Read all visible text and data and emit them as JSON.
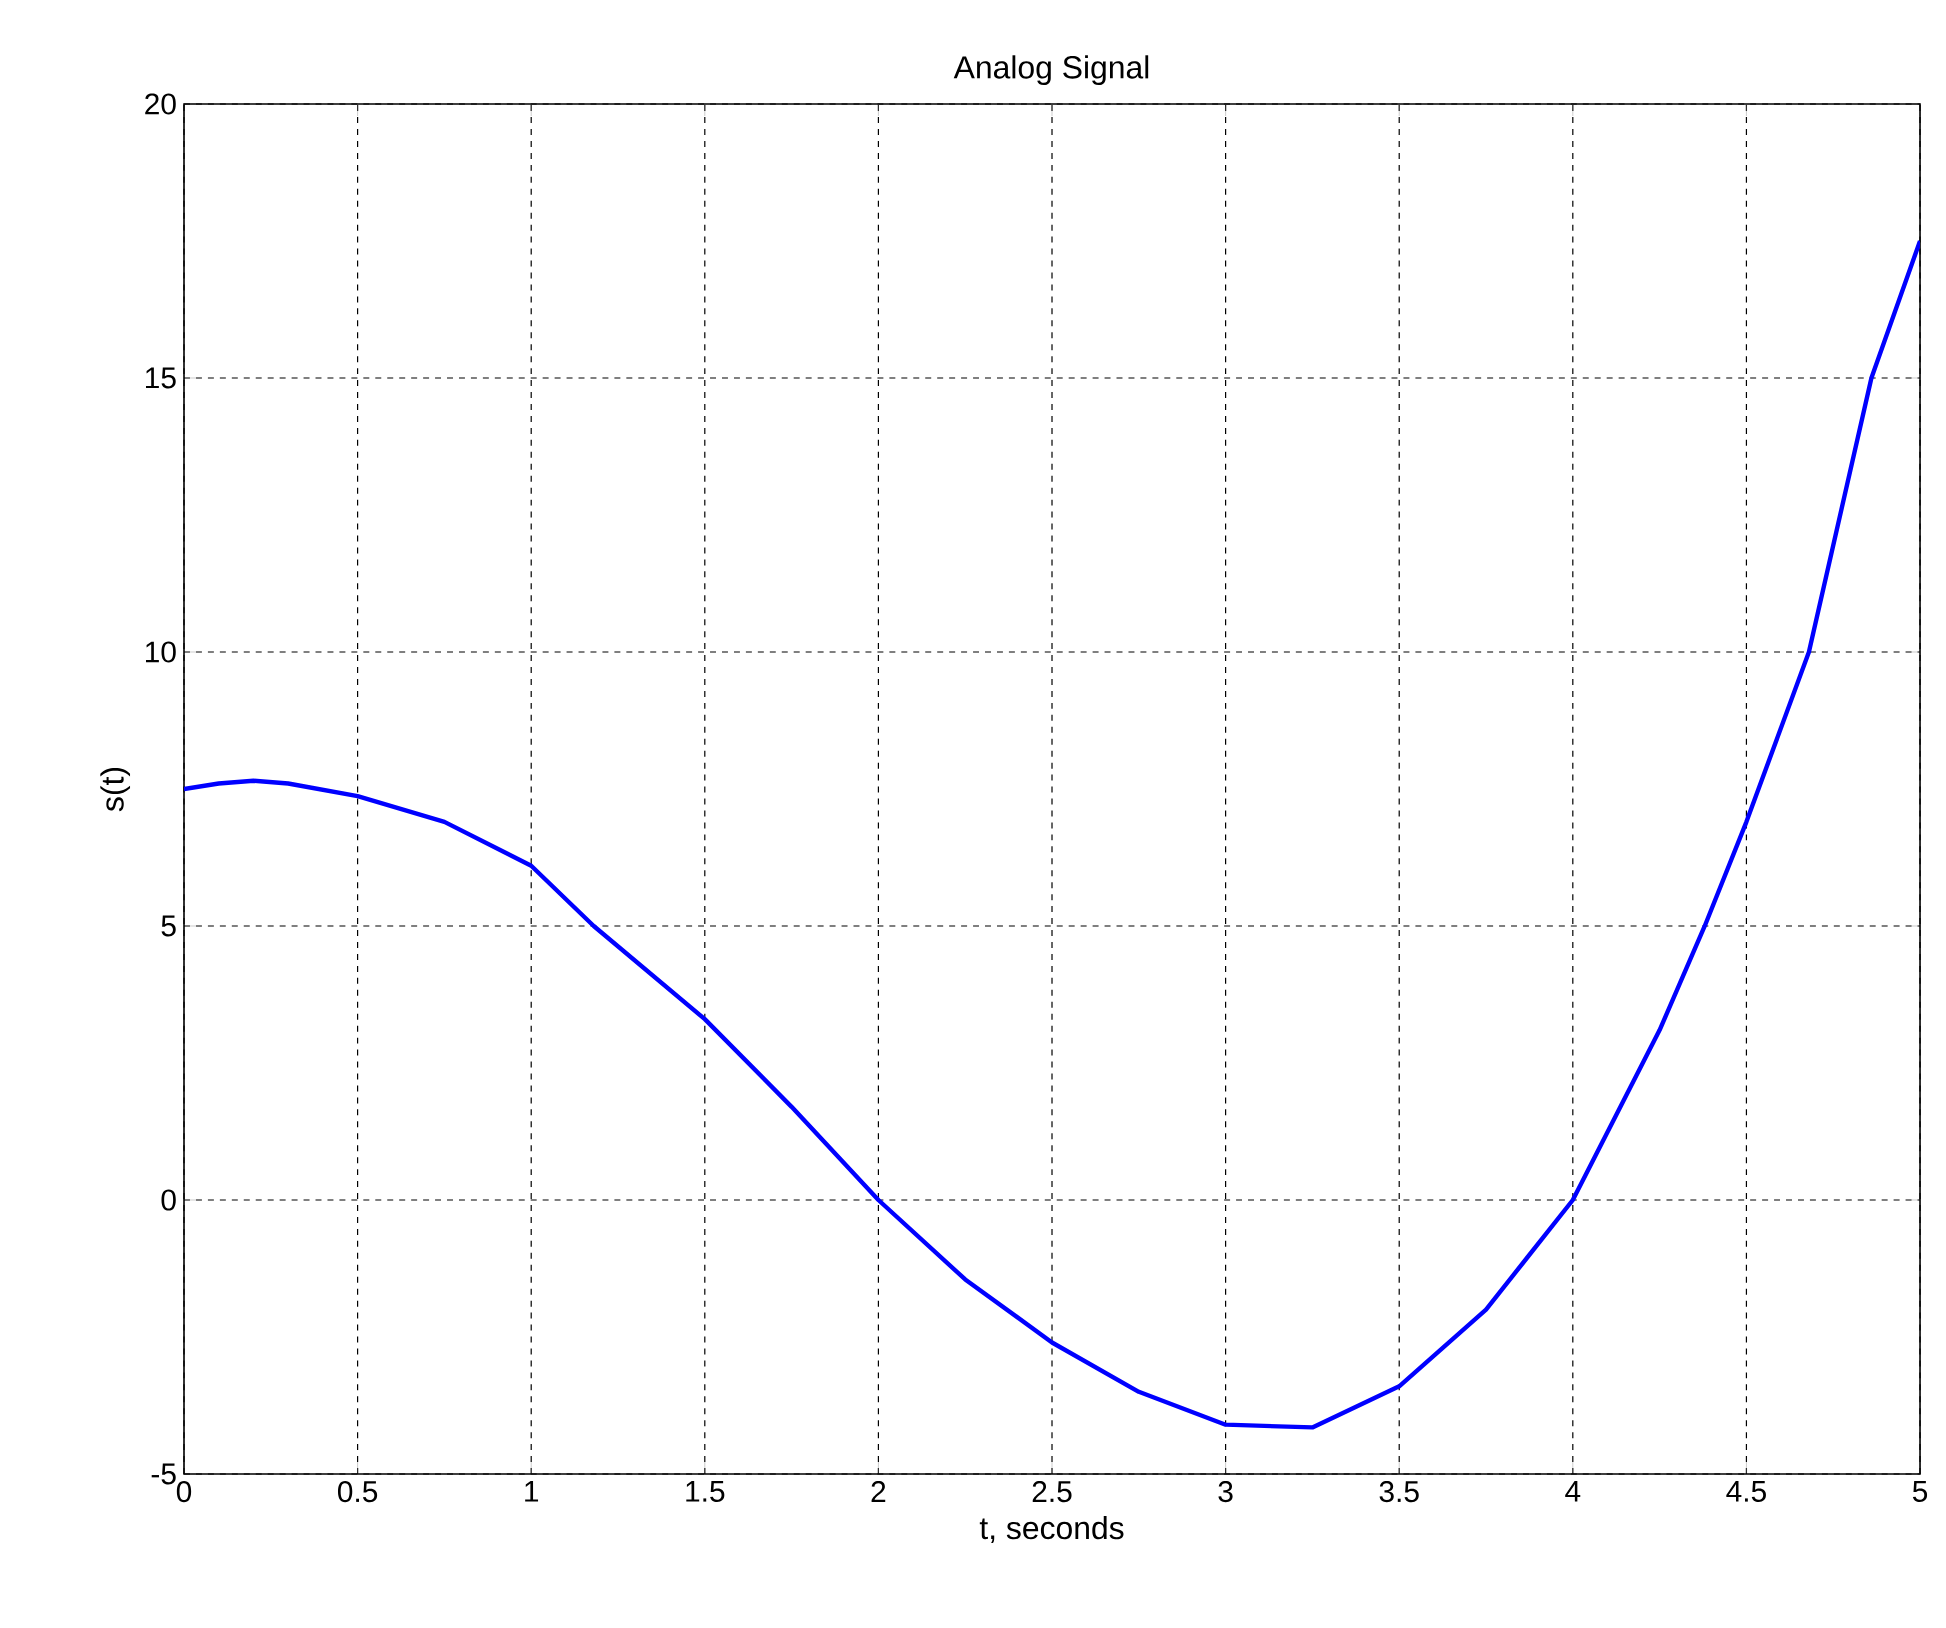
{
  "chart_data": {
    "type": "line",
    "title": "Analog Signal",
    "xlabel": "t, seconds",
    "ylabel": "s(t)",
    "x": [
      0,
      0.1,
      0.2,
      0.3,
      0.5,
      0.75,
      1,
      1.18,
      1.5,
      1.75,
      2,
      2.25,
      2.5,
      2.75,
      3,
      3.25,
      3.5,
      3.75,
      4,
      4.25,
      4.38,
      4.5,
      4.68,
      4.86,
      5
    ],
    "series": [
      {
        "color": "#0000ff",
        "values": [
          7.5,
          7.6,
          7.65,
          7.6,
          7.37,
          6.9,
          6.1,
          5,
          3.3,
          1.7,
          0,
          -1.45,
          -2.6,
          -3.5,
          -4.1,
          -4.15,
          -3.4,
          -2,
          0,
          3.1,
          5,
          6.9,
          10,
          15,
          17.5
        ]
      }
    ],
    "xlim": [
      0,
      5
    ],
    "ylim": [
      -5,
      20
    ],
    "xticks": [
      0,
      0.5,
      1,
      1.5,
      2,
      2.5,
      3,
      3.5,
      4,
      4.5,
      5
    ],
    "yticks": [
      -5,
      0,
      5,
      10,
      15,
      20
    ],
    "grid": true,
    "line_style": "solid",
    "marker": "none"
  }
}
